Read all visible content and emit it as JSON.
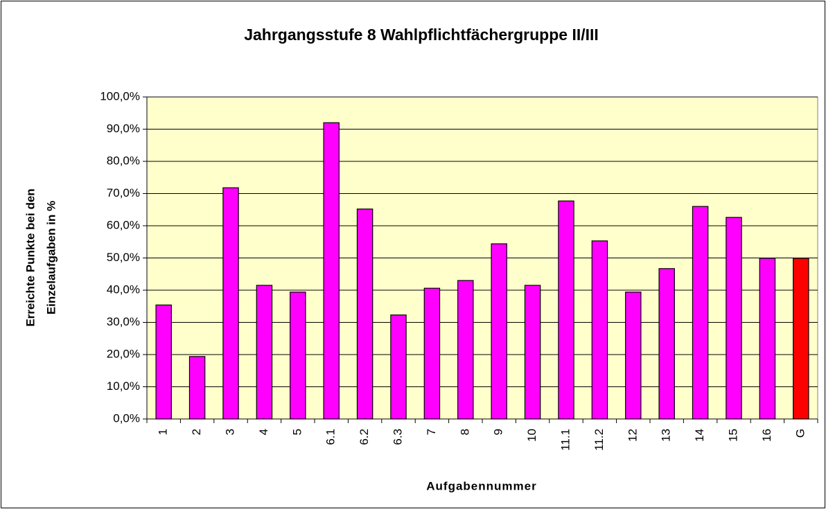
{
  "chart_data": {
    "type": "bar",
    "title": "Jahrgangsstufe 8 Wahlpflichtfächergruppe II/III",
    "xlabel": "Aufgabennummer",
    "ylabel": [
      "Erreichte Punkte bei den",
      "Einzelaufgaben in %"
    ],
    "categories": [
      "1",
      "2",
      "3",
      "4",
      "5",
      "6.1",
      "6.2",
      "6.3",
      "7",
      "8",
      "9",
      "10",
      "11.1",
      "11.2",
      "12",
      "13",
      "14",
      "15",
      "16",
      "G"
    ],
    "values": [
      35.4,
      19.4,
      71.8,
      41.5,
      39.4,
      92.0,
      65.2,
      32.3,
      40.6,
      43.0,
      54.4,
      41.5,
      67.7,
      55.3,
      39.4,
      46.7,
      66.0,
      62.6,
      49.9,
      49.9
    ],
    "colors": [
      "#ff00ff",
      "#ff00ff",
      "#ff00ff",
      "#ff00ff",
      "#ff00ff",
      "#ff00ff",
      "#ff00ff",
      "#ff00ff",
      "#ff00ff",
      "#ff00ff",
      "#ff00ff",
      "#ff00ff",
      "#ff00ff",
      "#ff00ff",
      "#ff00ff",
      "#ff00ff",
      "#ff00ff",
      "#ff00ff",
      "#ff00ff",
      "#ff0000"
    ],
    "plot_background": "#ffffcc",
    "ylim": [
      0,
      100
    ],
    "yticks": [
      {
        "value": 0,
        "label": "0,0%"
      },
      {
        "value": 10,
        "label": "10,0%"
      },
      {
        "value": 20,
        "label": "20,0%"
      },
      {
        "value": 30,
        "label": "30,0%"
      },
      {
        "value": 40,
        "label": "40,0%"
      },
      {
        "value": 50,
        "label": "50,0%"
      },
      {
        "value": 60,
        "label": "60,0%"
      },
      {
        "value": 70,
        "label": "70,0%"
      },
      {
        "value": 80,
        "label": "80,0%"
      },
      {
        "value": 90,
        "label": "90,0%"
      },
      {
        "value": 100,
        "label": "100,0%"
      }
    ],
    "grid": true
  }
}
